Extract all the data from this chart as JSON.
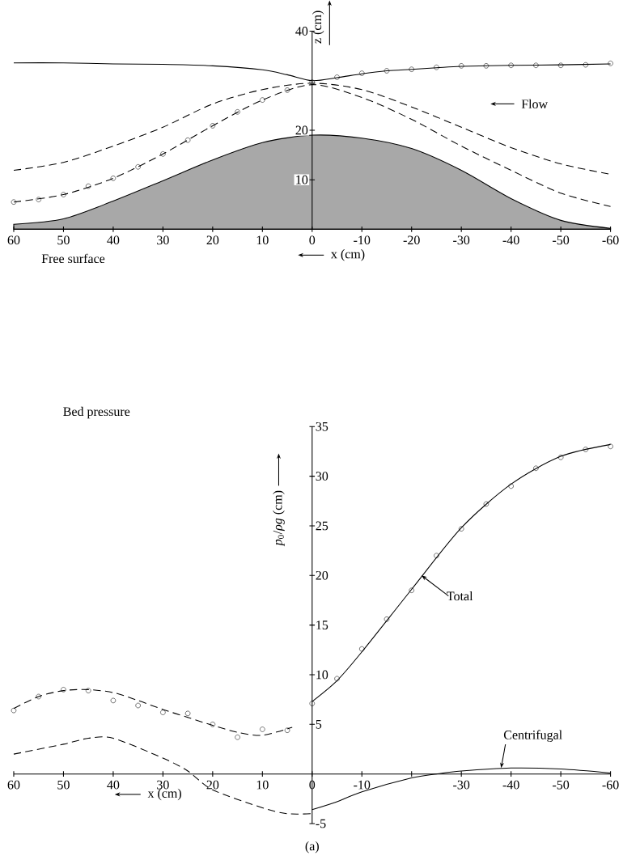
{
  "chart_data": [
    {
      "type": "line",
      "title": "Free surface",
      "xlabel": "x (cm)",
      "ylabel": "z (cm)",
      "xlim": [
        60,
        -60
      ],
      "ylim": [
        0,
        40
      ],
      "xticks": [
        60,
        50,
        40,
        30,
        20,
        10,
        0,
        -10,
        -20,
        -30,
        -40,
        -50,
        -60
      ],
      "yticks": [
        10,
        20,
        40
      ],
      "annotations": [
        "Flow"
      ],
      "series": [
        {
          "type": "area",
          "color": "#a8a8a8",
          "x": [
            60,
            50,
            40,
            30,
            20,
            10,
            0,
            -10,
            -20,
            -30,
            -40,
            -50,
            -60
          ],
          "values": [
            1.0,
            2.1,
            5.7,
            9.8,
            14.0,
            17.5,
            19.0,
            18.4,
            16.3,
            11.9,
            6.2,
            1.8,
            0.2
          ]
        },
        {
          "color": "#000000",
          "line_style": "solid",
          "x": [
            60,
            50,
            40,
            30,
            20,
            10,
            5,
            0,
            -5,
            -10,
            -15,
            -20,
            -25,
            -30,
            -40,
            -50,
            -60
          ],
          "values": [
            33.6,
            33.6,
            33.4,
            33.3,
            33.0,
            32.2,
            31.2,
            30.0,
            30.6,
            31.4,
            32.0,
            32.3,
            32.6,
            32.9,
            33.1,
            33.2,
            33.4
          ]
        },
        {
          "color": "#000000",
          "line_style": "dashed",
          "x": [
            60,
            50,
            40,
            30,
            20,
            10,
            0,
            -10,
            -20,
            -30,
            -40,
            -50,
            -60
          ],
          "values": [
            11.9,
            13.5,
            16.8,
            20.6,
            25.3,
            28.2,
            29.5,
            28.2,
            24.7,
            20.6,
            16.5,
            13.2,
            11.1
          ]
        },
        {
          "color": "#000000",
          "line_style": "dashed",
          "x": [
            60,
            50,
            40,
            30,
            20,
            10,
            0,
            -10,
            -20,
            -30,
            -40,
            -50,
            -60
          ],
          "values": [
            5.5,
            7.0,
            10.3,
            15.2,
            20.9,
            26.1,
            29.2,
            26.6,
            22.2,
            16.8,
            11.9,
            7.3,
            4.6
          ]
        },
        {
          "type": "scatter",
          "color": "#000000",
          "marker": "circle",
          "x": [
            60,
            55,
            50,
            45,
            40,
            35,
            30,
            25,
            20,
            15,
            10,
            5,
            0,
            -5,
            -10,
            -15,
            -20,
            -25,
            -30,
            -35,
            -40,
            -45,
            -50,
            -55,
            -60
          ],
          "values": [
            5.5,
            6.0,
            7.0,
            8.7,
            10.3,
            12.6,
            15.2,
            18.0,
            20.9,
            23.7,
            26.1,
            28.1,
            29.7,
            30.7,
            31.5,
            32.0,
            32.3,
            32.7,
            33.0,
            33.0,
            33.1,
            33.1,
            33.1,
            33.2,
            33.5
          ]
        }
      ]
    },
    {
      "type": "line",
      "title": "Bed pressure",
      "xlabel": "x (cm)",
      "ylabel": "*p*$_{0}$/*ρg* (cm)",
      "xlim": [
        60,
        -60
      ],
      "ylim": [
        -5,
        35
      ],
      "xticks": [
        60,
        50,
        40,
        30,
        20,
        10,
        0,
        -10,
        {
          "value": -20,
          "label": null
        },
        -30,
        -40,
        -50,
        -60
      ],
      "yticks": [
        -5,
        5,
        10,
        15,
        20,
        25,
        30,
        35
      ],
      "annotations": [
        {
          "text": "Total",
          "x": -22,
          "y": 20
        },
        {
          "text": "Centrifugal",
          "x": -38,
          "y": 0.6
        },
        "(a)"
      ],
      "series": [
        {
          "color": "#000000",
          "line_style": "dashed",
          "x": [
            60,
            55,
            50,
            45,
            40,
            35,
            30,
            25,
            20,
            15,
            10,
            4
          ],
          "values": [
            6.6,
            7.8,
            8.4,
            8.5,
            8.2,
            7.4,
            6.5,
            5.7,
            4.9,
            4.2,
            3.9,
            4.7
          ]
        },
        {
          "color": "#000000",
          "line_style": "solid",
          "x": [
            0,
            -5,
            -10,
            -20,
            -30,
            -40,
            -50,
            -60
          ],
          "values": [
            7.3,
            9.4,
            12.3,
            18.6,
            24.8,
            29.2,
            32.0,
            33.2
          ]
        },
        {
          "color": "#000000",
          "line_style": "dashed",
          "x": [
            60,
            50,
            45,
            40,
            30,
            25,
            20,
            10,
            5,
            0
          ],
          "values": [
            2.0,
            3.0,
            3.6,
            3.6,
            1.6,
            0.3,
            -1.6,
            -3.4,
            -4.0,
            -4.0
          ]
        },
        {
          "color": "#000000",
          "line_style": "solid",
          "x": [
            0,
            -5,
            -10,
            -20,
            -25,
            -30,
            -40,
            -50,
            -60
          ],
          "values": [
            -3.6,
            -2.8,
            -1.8,
            -0.4,
            0,
            0.3,
            0.6,
            0.5,
            0.1
          ]
        },
        {
          "type": "scatter",
          "color": "#000000",
          "marker": "circle",
          "x": [
            60,
            55,
            50,
            45,
            40,
            35,
            30,
            25,
            20,
            15,
            10,
            5,
            0,
            -5,
            -10,
            -15,
            -20,
            -25,
            -30,
            -35,
            -40,
            -45,
            -50,
            -55,
            -60
          ],
          "values": [
            6.4,
            7.8,
            8.5,
            8.4,
            7.4,
            6.9,
            6.2,
            6.1,
            5.0,
            3.7,
            4.5,
            4.4,
            7.1,
            9.6,
            12.6,
            15.6,
            18.5,
            22.0,
            24.7,
            27.2,
            29.0,
            30.8,
            31.9,
            32.7,
            33.0
          ]
        }
      ]
    }
  ]
}
